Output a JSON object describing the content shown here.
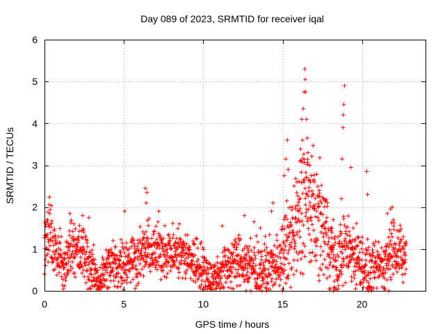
{
  "chart_data": {
    "type": "scatter",
    "title": "Day 089 of 2023, SRMTID for receiver iqal",
    "xlabel": "GPS time / hours",
    "ylabel": "SRMTID / TECUs",
    "xlim": [
      0,
      24
    ],
    "ylim": [
      0,
      6
    ],
    "x_ticks": [
      0,
      5,
      10,
      15,
      20
    ],
    "y_ticks": [
      0,
      1,
      2,
      3,
      4,
      5,
      6
    ],
    "grid": true,
    "marker": "+",
    "marker_color": "#ff0000",
    "envelope": [
      [
        0.0,
        1.0,
        0.35
      ],
      [
        0.3,
        1.4,
        0.35
      ],
      [
        0.5,
        1.0,
        0.35
      ],
      [
        0.8,
        0.9,
        0.3
      ],
      [
        1.0,
        0.8,
        0.3
      ],
      [
        1.2,
        0.4,
        0.25
      ],
      [
        1.5,
        0.9,
        0.35
      ],
      [
        1.8,
        1.2,
        0.35
      ],
      [
        2.0,
        0.9,
        0.3
      ],
      [
        2.5,
        0.9,
        0.35
      ],
      [
        3.0,
        0.5,
        0.3
      ],
      [
        3.3,
        0.3,
        0.2
      ],
      [
        3.5,
        0.25,
        0.2
      ],
      [
        4.0,
        0.6,
        0.3
      ],
      [
        4.5,
        0.6,
        0.3
      ],
      [
        5.0,
        0.7,
        0.3
      ],
      [
        5.5,
        0.8,
        0.3
      ],
      [
        6.0,
        0.8,
        0.3
      ],
      [
        6.5,
        1.0,
        0.3
      ],
      [
        7.0,
        0.9,
        0.3
      ],
      [
        7.5,
        1.0,
        0.3
      ],
      [
        8.0,
        0.9,
        0.3
      ],
      [
        8.5,
        0.9,
        0.3
      ],
      [
        9.0,
        0.8,
        0.3
      ],
      [
        9.5,
        0.7,
        0.3
      ],
      [
        10.0,
        0.5,
        0.3
      ],
      [
        10.5,
        0.3,
        0.2
      ],
      [
        11.0,
        0.4,
        0.25
      ],
      [
        11.5,
        0.6,
        0.3
      ],
      [
        12.0,
        0.7,
        0.3
      ],
      [
        12.5,
        0.7,
        0.3
      ],
      [
        13.0,
        0.6,
        0.3
      ],
      [
        13.5,
        0.5,
        0.3
      ],
      [
        14.0,
        0.5,
        0.3
      ],
      [
        14.5,
        0.6,
        0.3
      ],
      [
        15.0,
        0.8,
        0.4
      ],
      [
        15.5,
        1.2,
        0.6
      ],
      [
        16.0,
        1.5,
        0.7
      ],
      [
        16.3,
        2.4,
        0.9
      ],
      [
        16.6,
        2.0,
        0.8
      ],
      [
        17.0,
        1.8,
        0.6
      ],
      [
        17.5,
        1.5,
        0.6
      ],
      [
        18.0,
        1.2,
        0.5
      ],
      [
        18.4,
        0.4,
        0.3
      ],
      [
        18.7,
        1.0,
        0.5
      ],
      [
        19.0,
        1.0,
        0.4
      ],
      [
        19.5,
        0.9,
        0.4
      ],
      [
        20.0,
        0.7,
        0.3
      ],
      [
        20.5,
        0.4,
        0.3
      ],
      [
        21.0,
        0.6,
        0.3
      ],
      [
        21.5,
        0.7,
        0.35
      ],
      [
        22.0,
        1.2,
        0.4
      ],
      [
        22.5,
        0.8,
        0.3
      ],
      [
        22.8,
        0.8,
        0.3
      ]
    ],
    "outliers": [
      [
        0.0,
        0.4
      ],
      [
        0.05,
        1.6
      ],
      [
        1.6,
        1.85
      ],
      [
        2.4,
        1.8
      ],
      [
        2.8,
        1.75
      ],
      [
        5.05,
        1.9
      ],
      [
        6.35,
        2.45
      ],
      [
        6.4,
        2.1
      ],
      [
        6.45,
        2.35
      ],
      [
        7.2,
        1.9
      ],
      [
        8.5,
        1.6
      ],
      [
        11.2,
        1.55
      ],
      [
        12.6,
        1.8
      ],
      [
        13.2,
        1.65
      ],
      [
        13.6,
        1.5
      ],
      [
        14.3,
        1.9
      ],
      [
        14.4,
        2.1
      ],
      [
        15.1,
        2.75
      ],
      [
        15.2,
        3.15
      ],
      [
        15.3,
        3.6
      ],
      [
        15.35,
        2.9
      ],
      [
        15.6,
        2.0
      ],
      [
        15.9,
        2.6
      ],
      [
        16.1,
        3.1
      ],
      [
        16.2,
        4.1
      ],
      [
        16.25,
        3.6
      ],
      [
        16.3,
        4.35
      ],
      [
        16.35,
        4.75
      ],
      [
        16.4,
        5.3
      ],
      [
        16.42,
        5.05
      ],
      [
        16.45,
        4.75
      ],
      [
        16.5,
        4.1
      ],
      [
        16.55,
        3.65
      ],
      [
        16.6,
        3.3
      ],
      [
        16.7,
        3.0
      ],
      [
        16.8,
        2.75
      ],
      [
        17.0,
        2.6
      ],
      [
        17.3,
        2.4
      ],
      [
        17.6,
        2.2
      ],
      [
        18.1,
        1.5
      ],
      [
        18.7,
        2.2
      ],
      [
        18.75,
        3.15
      ],
      [
        18.8,
        3.9
      ],
      [
        18.82,
        4.2
      ],
      [
        18.85,
        4.45
      ],
      [
        18.9,
        4.9
      ],
      [
        19.3,
        2.95
      ],
      [
        20.3,
        2.85
      ],
      [
        20.35,
        2.3
      ],
      [
        21.6,
        1.85
      ],
      [
        21.8,
        1.95
      ],
      [
        21.9,
        2.0
      ],
      [
        12.7,
        0.0
      ],
      [
        13.0,
        0.0
      ],
      [
        13.7,
        0.0
      ],
      [
        14.0,
        0.0
      ],
      [
        15.0,
        0.0
      ],
      [
        18.0,
        0.05
      ],
      [
        18.2,
        0.0
      ],
      [
        20.4,
        0.0
      ],
      [
        20.6,
        0.0
      ],
      [
        21.4,
        0.05
      ],
      [
        21.7,
        0.0
      ]
    ]
  }
}
